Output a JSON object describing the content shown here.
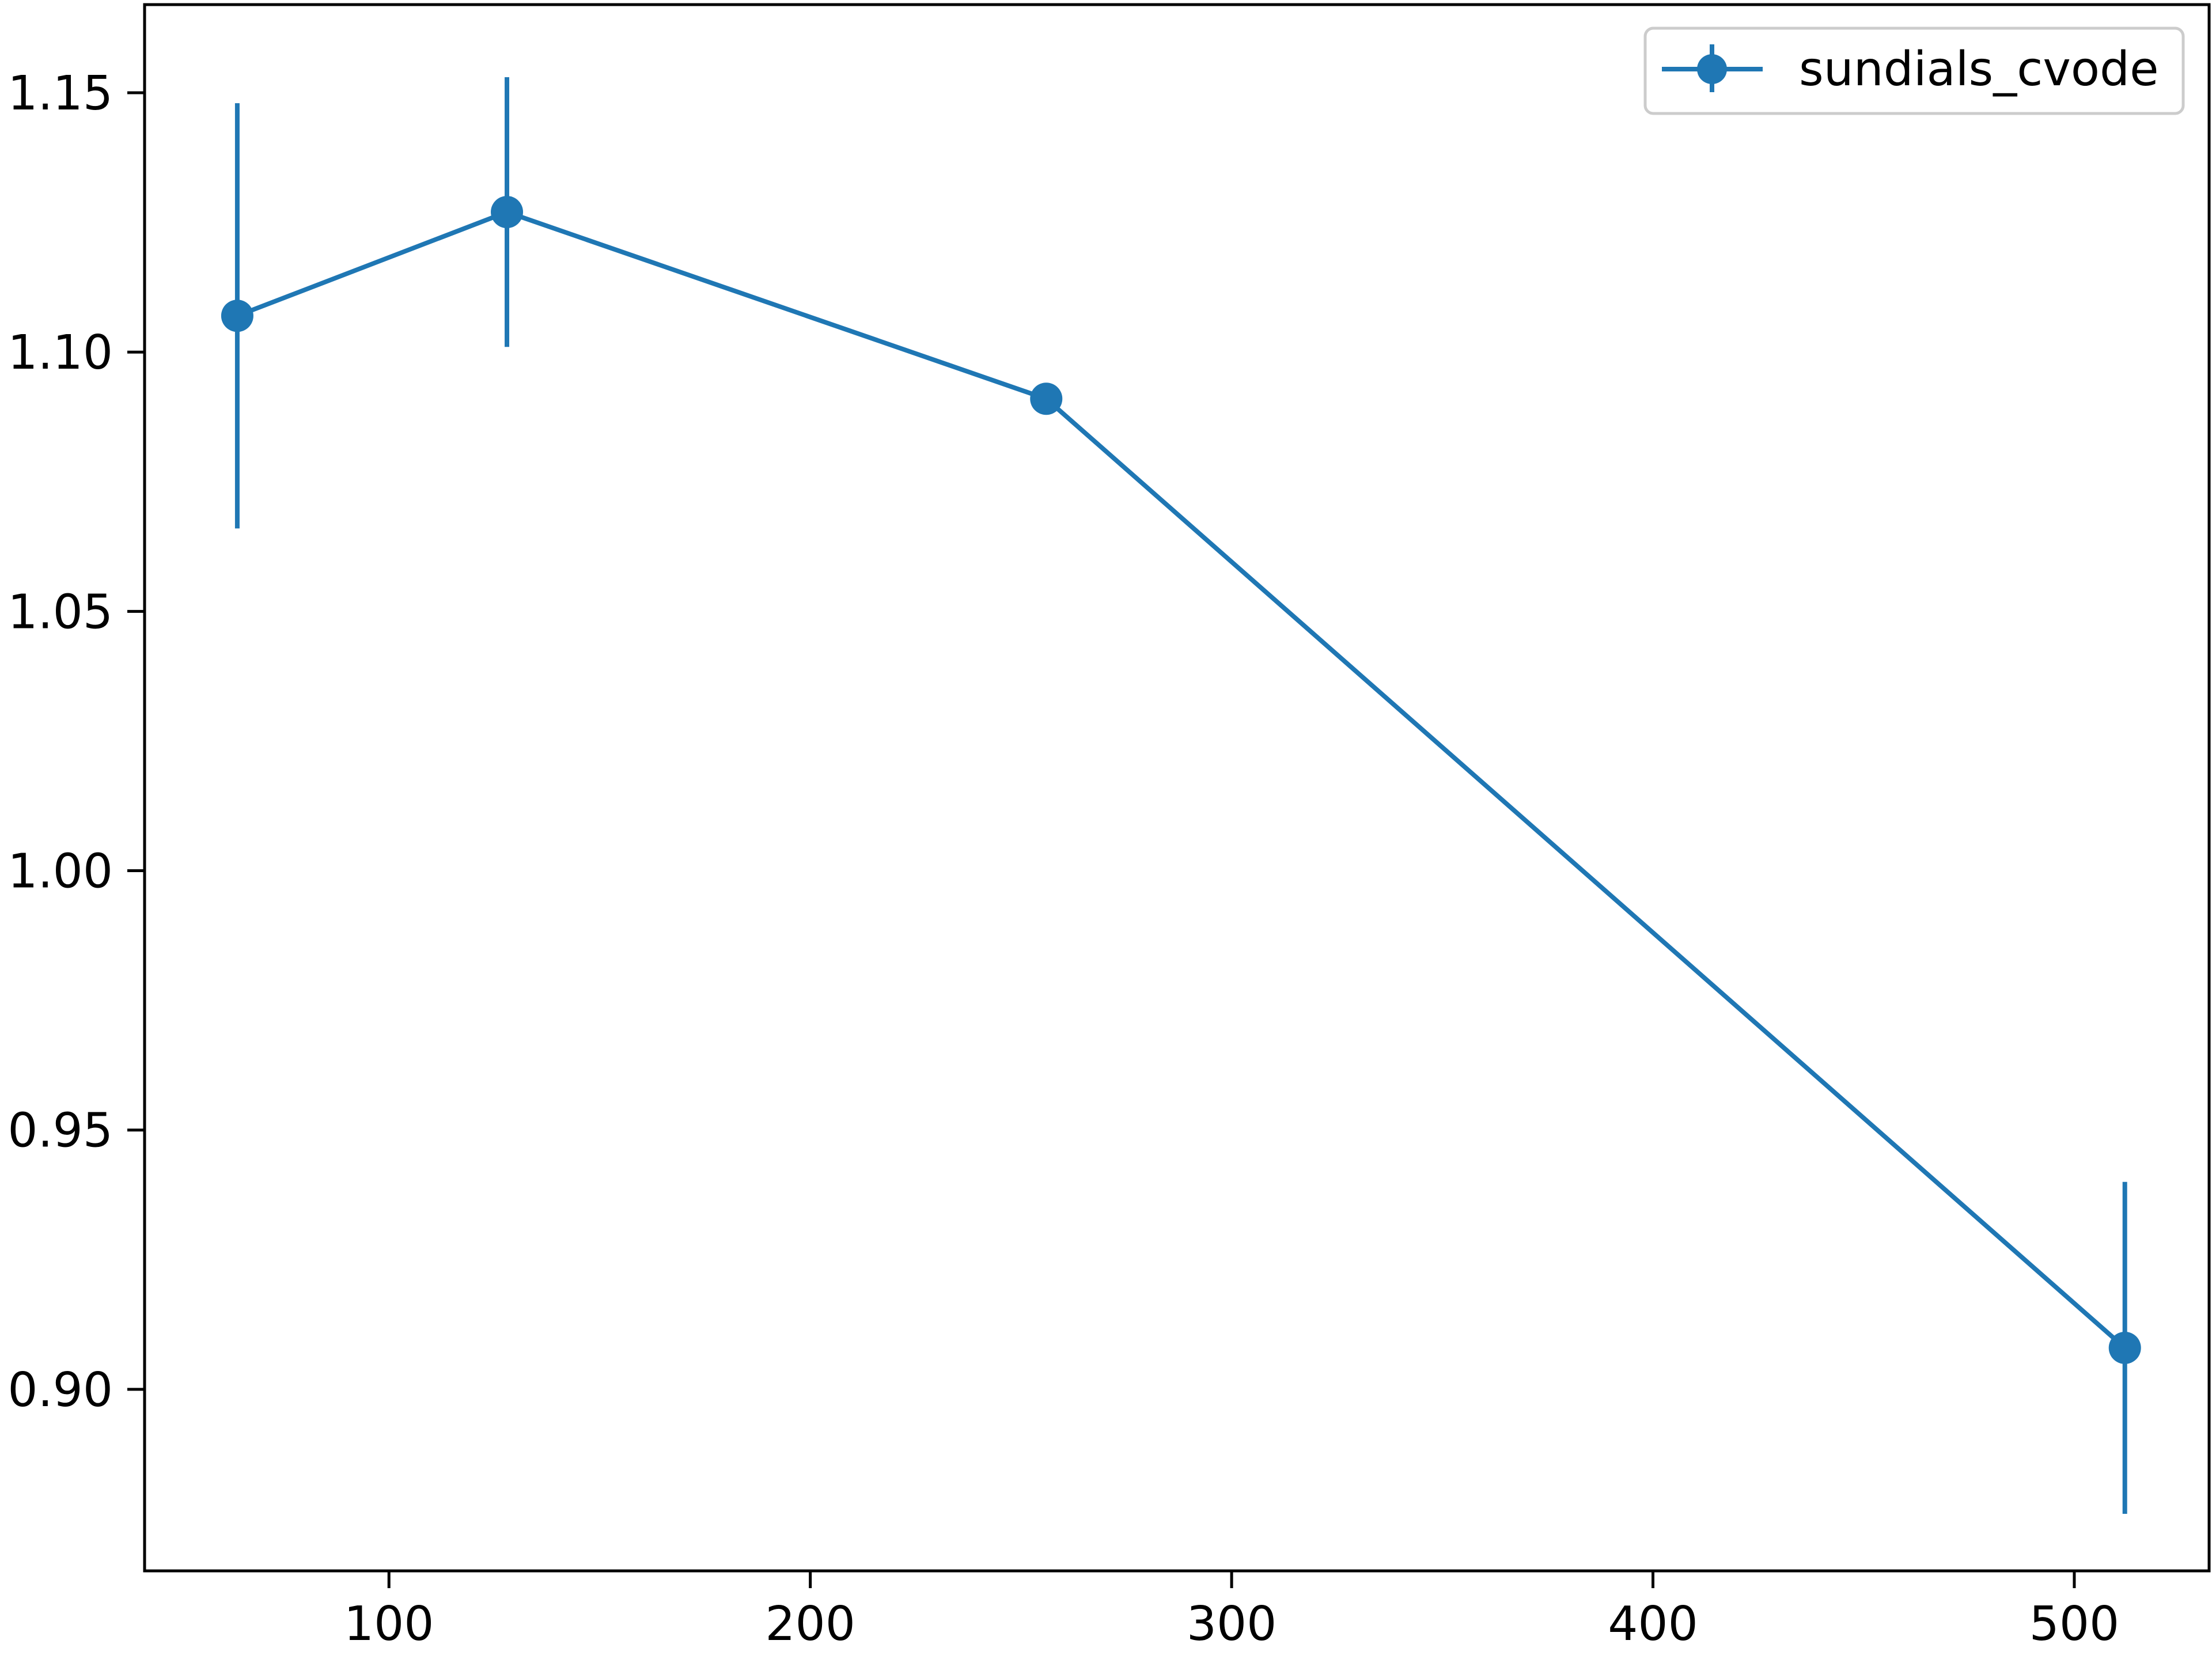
{
  "chart_data": {
    "type": "line",
    "title": "",
    "xlabel": "",
    "ylabel": "",
    "xlim": [
      42,
      532
    ],
    "ylim": [
      0.865,
      1.167
    ],
    "x_ticks": [
      100,
      200,
      300,
      400,
      500
    ],
    "x_tick_labels": [
      "100",
      "200",
      "300",
      "400",
      "500"
    ],
    "y_ticks": [
      0.9,
      0.95,
      1.0,
      1.05,
      1.1,
      1.15
    ],
    "y_tick_labels": [
      "0.90",
      "0.95",
      "1.00",
      "1.05",
      "1.10",
      "1.15"
    ],
    "grid": false,
    "legend_position": "top-right",
    "series": [
      {
        "name": "sundials_cvode",
        "color": "#1f77b4",
        "marker": "circle",
        "x": [
          64,
          128,
          256,
          512
        ],
        "y": [
          1.107,
          1.127,
          1.091,
          0.908
        ],
        "yerr_lower": [
          0.041,
          0.026,
          0.003,
          0.032
        ],
        "yerr_upper": [
          0.041,
          0.026,
          0.003,
          0.032
        ]
      }
    ]
  }
}
